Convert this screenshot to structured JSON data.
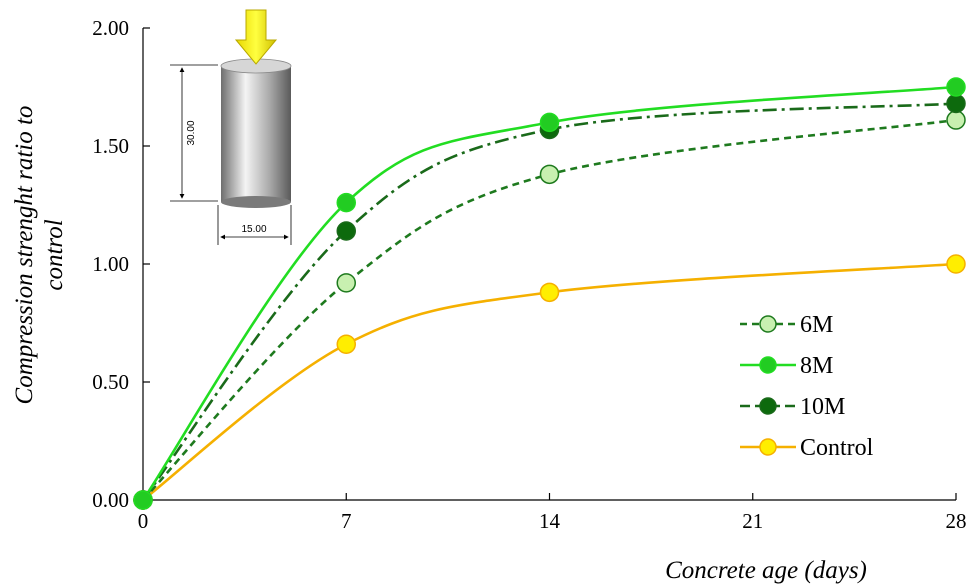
{
  "chart_data": {
    "type": "line",
    "x": [
      0,
      7,
      14,
      28
    ],
    "xlabel": "Concrete age (days)",
    "ylabel_line1": "Compression strenght ratio to",
    "ylabel_line2": "control",
    "xlim": [
      0,
      28
    ],
    "ylim": [
      0,
      2
    ],
    "xticks": [
      0,
      7,
      14,
      21,
      28
    ],
    "xtick_labels": [
      "0",
      "7",
      "14",
      "21",
      "28"
    ],
    "yticks": [
      0,
      0.5,
      1.0,
      1.5,
      2.0
    ],
    "ytick_labels": [
      "0.00",
      "0.50",
      "1.00",
      "1.50",
      "2.00"
    ],
    "grid": false,
    "legend_position": "bottom-right",
    "series": [
      {
        "name": "6M",
        "values": [
          0,
          0.92,
          1.38,
          1.61
        ],
        "color": "#1e7a1e",
        "marker_fill": "#c8f0b0",
        "dash": "7,5"
      },
      {
        "name": "8M",
        "values": [
          0,
          1.26,
          1.6,
          1.75
        ],
        "color": "#22dd22",
        "marker_fill": "#22cc22",
        "dash": ""
      },
      {
        "name": "10M",
        "values": [
          0,
          1.14,
          1.57,
          1.68
        ],
        "color": "#1a6a1a",
        "marker_fill": "#0d6a0d",
        "dash": "14,5,3,5"
      },
      {
        "name": "Control",
        "values": [
          0,
          0.66,
          0.88,
          1.0
        ],
        "color": "#f5b000",
        "marker_fill": "#ffee00",
        "dash": ""
      }
    ],
    "inset": {
      "height_label": "30.00",
      "width_label": "15.00"
    }
  }
}
